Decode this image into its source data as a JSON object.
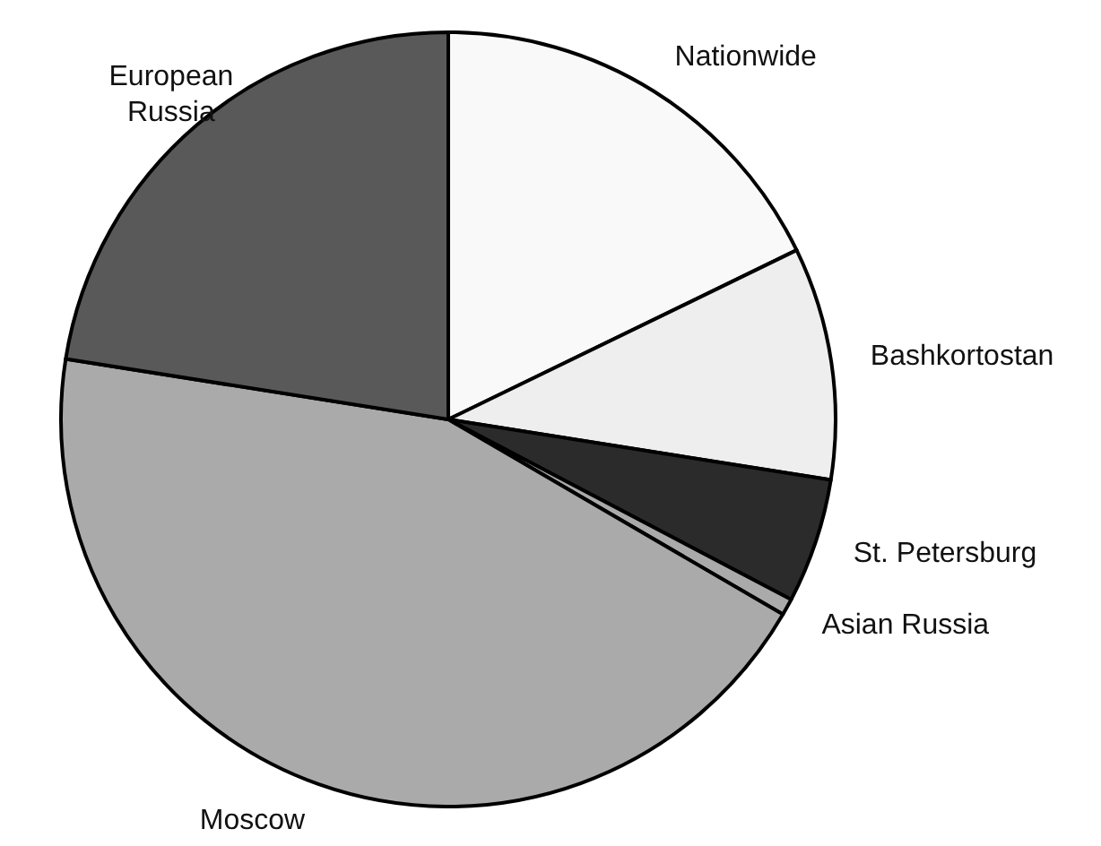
{
  "chart_data": {
    "type": "pie",
    "categories": [
      "Nationwide",
      "Bashkortostan",
      "St. Petersburg",
      "Asian Russia",
      "Moscow",
      "European Russia"
    ],
    "values": [
      17.8,
      9.7,
      5.2,
      0.7,
      44.1,
      22.5
    ],
    "colors": [
      "#f9f9f9",
      "#eeeeee",
      "#2b2b2b",
      "#aaaaaa",
      "#aaaaaa",
      "#595959"
    ]
  }
}
